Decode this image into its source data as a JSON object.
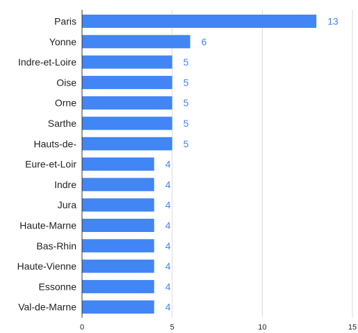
{
  "chart_data": {
    "type": "bar",
    "orientation": "horizontal",
    "categories": [
      "Paris",
      "Yonne",
      "Indre-et-Loire",
      "Oise",
      "Orne",
      "Sarthe",
      "Hauts-de-",
      "Eure-et-Loir",
      "Indre",
      "Jura",
      "Haute-Marne",
      "Bas-Rhin",
      "Haute-Vienne",
      "Essonne",
      "Val-de-Marne"
    ],
    "values": [
      13,
      6,
      5,
      5,
      5,
      5,
      5,
      4,
      4,
      4,
      4,
      4,
      4,
      4,
      4
    ],
    "value_labels": [
      "13",
      "6",
      "5",
      "5",
      "5",
      "5",
      "5",
      "4",
      "4",
      "4",
      "4",
      "4",
      "4",
      "4",
      "4"
    ],
    "x_ticks": [
      0,
      5,
      10,
      15
    ],
    "x_tick_labels": [
      "0",
      "5",
      "10",
      "15"
    ],
    "xlim": [
      0,
      15
    ],
    "grid": "vertical",
    "legend": "none",
    "title": "",
    "xlabel": "",
    "ylabel": "",
    "colors": {
      "bar": "#4285f4",
      "value_label": "#4285f4",
      "grid": "#dadada",
      "axis": "#333333"
    }
  }
}
